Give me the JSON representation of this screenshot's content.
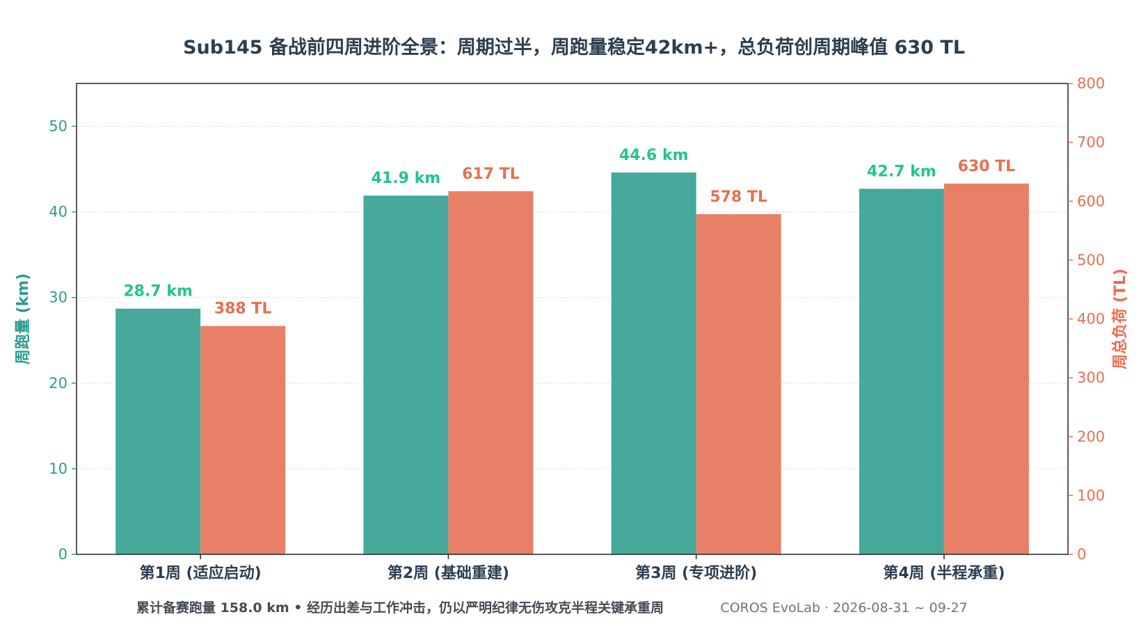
{
  "chart_data": {
    "type": "bar",
    "title": "Sub145 备战前四周进阶全景：周期过半，周跑量稳定42km+，总负荷创周期峰值 630 TL",
    "categories": [
      "第1周 (适应启动)",
      "第2周 (基础重建)",
      "第3周 (专项进阶)",
      "第4周 (半程承重)"
    ],
    "series": [
      {
        "name": "周跑量 (km)",
        "axis": "left",
        "color": "#46a99b",
        "label_color": "#23c48f",
        "values": [
          28.7,
          41.9,
          44.6,
          42.7
        ],
        "labels": [
          "28.7 km",
          "41.9 km",
          "44.6 km",
          "42.7 km"
        ]
      },
      {
        "name": "周总负荷 (TL)",
        "axis": "right",
        "color": "#e88067",
        "label_color": "#e76f51",
        "values": [
          388,
          617,
          578,
          630
        ],
        "labels": [
          "388 TL",
          "617 TL",
          "578 TL",
          "630 TL"
        ]
      }
    ],
    "ylabel_left": "周跑量 (km)",
    "ylabel_right": "周总负荷 (TL)",
    "ylim_left": [
      0,
      55
    ],
    "yticks_left": [
      "0",
      "10",
      "20",
      "30",
      "40",
      "50"
    ],
    "ylim_right": [
      0,
      800
    ],
    "yticks_right": [
      "0",
      "100",
      "200",
      "300",
      "400",
      "500",
      "600",
      "700",
      "800"
    ],
    "grid": "horizontal dotted",
    "footer": "累计备赛跑量 158.0 km • 经历出差与工作冲击，仍以严明纪律无伤攻克半程关键承重周",
    "source": "COROS EvoLab · 2026-08-31 ~ 09-27"
  }
}
